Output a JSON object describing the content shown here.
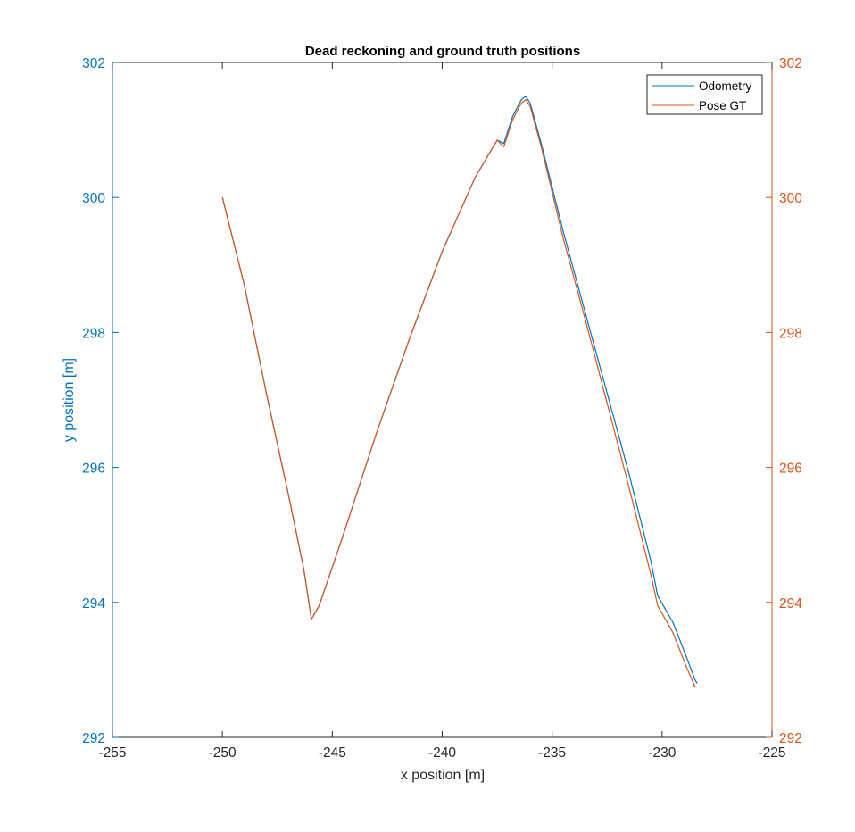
{
  "chart_data": {
    "type": "line",
    "title": "Dead reckoning and ground truth positions",
    "xlabel": "x position [m]",
    "ylabel": "y position [m]",
    "xlim": [
      -255,
      -225
    ],
    "ylim": [
      292,
      302
    ],
    "x_ticks": [
      -255,
      -250,
      -245,
      -240,
      -235,
      -230,
      -225
    ],
    "y_ticks": [
      292,
      294,
      296,
      298,
      300,
      302
    ],
    "y_ticks_right": [
      292,
      294,
      296,
      298,
      300,
      302
    ],
    "grid": false,
    "legend_position": "top-right",
    "colors": {
      "left_axis": "#0072BD",
      "right_axis": "#D95319",
      "axes": "#262626"
    },
    "series": [
      {
        "name": "Odometry",
        "color": "#0072BD",
        "x": [
          -250.0,
          -249.0,
          -248.0,
          -247.0,
          -246.3,
          -245.95,
          -245.6,
          -244.5,
          -243.0,
          -241.5,
          -240.0,
          -238.5,
          -237.5,
          -237.2,
          -236.8,
          -236.4,
          -236.2,
          -236.0,
          -235.5,
          -234.5,
          -233.5,
          -232.5,
          -231.5,
          -230.5,
          -230.2,
          -229.5,
          -228.9,
          -228.5,
          -228.4
        ],
        "y": [
          300.0,
          298.7,
          297.1,
          295.6,
          294.5,
          293.75,
          293.95,
          295.0,
          296.5,
          297.9,
          299.2,
          300.3,
          300.85,
          300.8,
          301.2,
          301.45,
          301.5,
          301.4,
          300.8,
          299.5,
          298.3,
          297.1,
          295.9,
          294.6,
          294.1,
          293.7,
          293.2,
          292.85,
          292.8
        ]
      },
      {
        "name": "Pose GT",
        "color": "#D95319",
        "x": [
          -250.0,
          -249.0,
          -248.0,
          -247.0,
          -246.3,
          -245.95,
          -245.6,
          -244.5,
          -243.0,
          -241.5,
          -240.0,
          -238.5,
          -237.5,
          -237.2,
          -236.8,
          -236.4,
          -236.2,
          -236.0,
          -235.5,
          -234.5,
          -233.5,
          -232.5,
          -231.5,
          -230.5,
          -230.2,
          -229.5,
          -228.9,
          -228.5,
          -228.6
        ],
        "y": [
          300.0,
          298.7,
          297.1,
          295.6,
          294.5,
          293.75,
          293.95,
          295.0,
          296.5,
          297.9,
          299.2,
          300.3,
          300.85,
          300.75,
          301.15,
          301.4,
          301.45,
          301.35,
          300.75,
          299.4,
          298.2,
          296.95,
          295.7,
          294.4,
          293.95,
          293.55,
          293.05,
          292.75,
          292.75
        ]
      }
    ]
  }
}
